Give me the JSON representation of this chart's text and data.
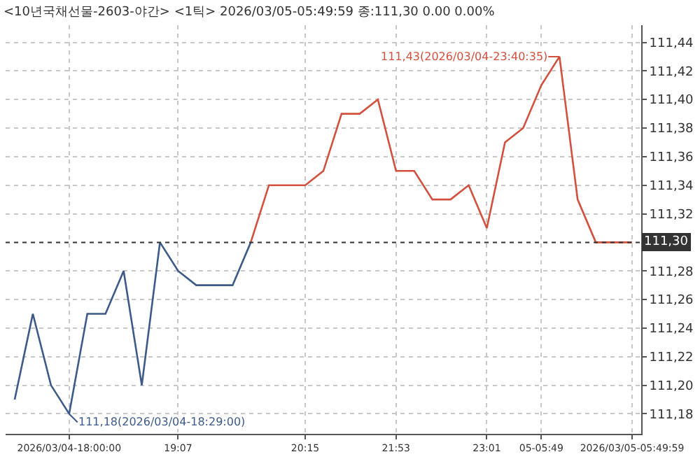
{
  "chart_data": {
    "type": "line",
    "title": "<10년국채선물-2603-야간> <1틱> 2026/03/05-05:49:59 종:111,30 0.00 0.00%",
    "categories": [
      null,
      null,
      null,
      "2026/03/04-18:00:00",
      null,
      null,
      null,
      null,
      null,
      "19:07",
      null,
      null,
      null,
      null,
      null,
      null,
      "20:15",
      null,
      null,
      null,
      null,
      "21:53",
      null,
      null,
      null,
      null,
      "23:01",
      null,
      null,
      "05-05:49",
      null,
      null,
      null,
      null,
      "2026/03/05-05:49:59"
    ],
    "series": [
      {
        "color": "#3c5a8a",
        "values": [
          111.19,
          111.25,
          111.2,
          111.18,
          111.25,
          111.25,
          111.28,
          111.2,
          111.3,
          111.28,
          111.27,
          111.27,
          111.27,
          111.3,
          null,
          null,
          null,
          null,
          null,
          null,
          null,
          null,
          null,
          null,
          null,
          null,
          null,
          null,
          null,
          null,
          null,
          null,
          null,
          null,
          null
        ]
      },
      {
        "color": "#d4503e",
        "values": [
          null,
          null,
          null,
          null,
          null,
          null,
          null,
          null,
          null,
          null,
          null,
          null,
          null,
          111.3,
          111.34,
          111.34,
          111.34,
          111.35,
          111.39,
          111.39,
          111.4,
          111.35,
          111.35,
          111.33,
          111.33,
          111.34,
          111.31,
          111.37,
          111.38,
          111.41,
          111.43,
          111.33,
          111.3,
          111.3,
          111.3
        ]
      }
    ],
    "ylim": [
      111.166,
      111.452
    ],
    "yticks": [
      {
        "value": 111.18,
        "label": "111,18"
      },
      {
        "value": 111.2,
        "label": "111,20"
      },
      {
        "value": 111.22,
        "label": "111,22"
      },
      {
        "value": 111.24,
        "label": "111,24"
      },
      {
        "value": 111.26,
        "label": "111,26"
      },
      {
        "value": 111.28,
        "label": "111,28"
      },
      {
        "value": 111.32,
        "label": "111,32"
      },
      {
        "value": 111.34,
        "label": "111,34"
      },
      {
        "value": 111.36,
        "label": "111,36"
      },
      {
        "value": 111.38,
        "label": "111,38"
      },
      {
        "value": 111.4,
        "label": "111,40"
      },
      {
        "value": 111.42,
        "label": "111,42"
      },
      {
        "value": 111.44,
        "label": "111,44"
      }
    ],
    "ref_lines": [
      {
        "axis": "y",
        "value": 111.3,
        "label": "111,30",
        "color": "#333333",
        "line_style": "dotted"
      }
    ],
    "annotations": [
      "111,18(2026/03/04-18:29:00)",
      "111,43(2026/03/04-23:40:35)"
    ],
    "grid": true,
    "marker": "none",
    "line_style": "solid"
  }
}
